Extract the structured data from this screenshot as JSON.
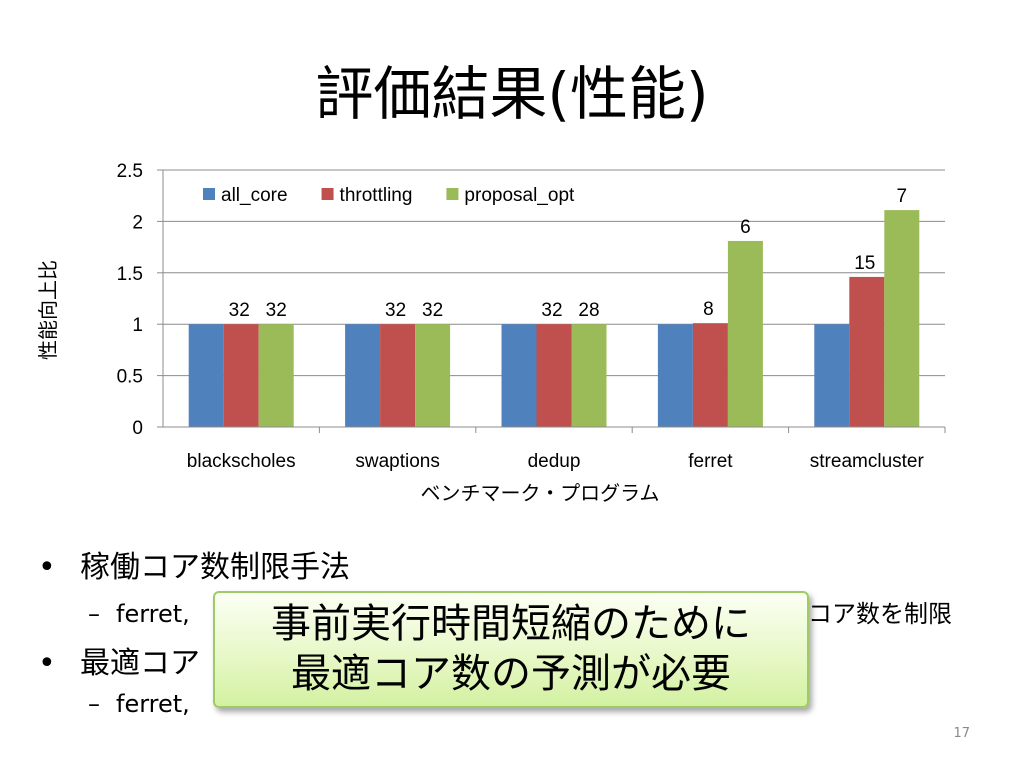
{
  "slide": {
    "title": "評価結果(性能)",
    "number": "17"
  },
  "chart_data": {
    "type": "bar",
    "categories": [
      "blackscholes",
      "swaptions",
      "dedup",
      "ferret",
      "streamcluster"
    ],
    "series": [
      {
        "name": "all_core",
        "color": "#4f81bd",
        "values": [
          1,
          1,
          1,
          1,
          1
        ],
        "labels": [
          "",
          "",
          "",
          "",
          ""
        ]
      },
      {
        "name": "throttling",
        "color": "#c0504d",
        "values": [
          1,
          1,
          1,
          1.01,
          1.46
        ],
        "labels": [
          "32",
          "32",
          "32",
          "8",
          "15"
        ]
      },
      {
        "name": "proposal_opt",
        "color": "#9bbb59",
        "values": [
          1,
          1,
          1,
          1.81,
          2.11
        ],
        "labels": [
          "32",
          "32",
          "28",
          "6",
          "7"
        ]
      }
    ],
    "ylim": [
      0,
      2.5
    ],
    "yticks": [
      "0",
      "0.5",
      "1",
      "1.5",
      "2",
      "2.5"
    ],
    "ylabel": "性能向上比",
    "xlabel": "ベンチマーク・プログラム",
    "grid": true,
    "legend_position": "top"
  },
  "bullets": [
    {
      "text": "稼働コア数制限手法"
    },
    {
      "sub": "ferret,",
      "tail": "コア数を制限"
    },
    {
      "text": "最適コア"
    },
    {
      "sub": "ferret,"
    }
  ],
  "callout": {
    "line1": "事前実行時間短縮のために",
    "line2": "最適コア数の予測が必要"
  }
}
